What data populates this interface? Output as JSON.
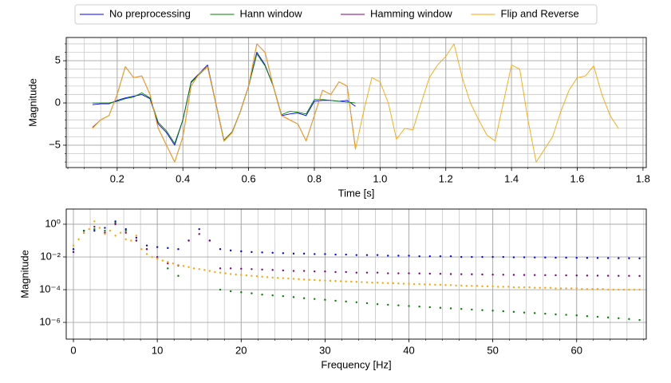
{
  "chart_data": [
    {
      "type": "line",
      "xlabel": "Time [s]",
      "ylabel": "Magnitude",
      "legend": "top",
      "grid": true,
      "minor_grid": true,
      "xlim": [
        0.045,
        1.81
      ],
      "ylim": [
        -7.65,
        7.75
      ],
      "xticks": [
        0.2,
        0.4,
        0.6,
        0.8,
        {
          "value": 1.0,
          "label": "1.0"
        },
        1.2,
        1.4,
        1.6,
        1.8
      ],
      "yticks": [
        {
          "value": -5,
          "label": "−5"
        },
        0,
        5
      ],
      "x": [
        0.125,
        0.15,
        0.175,
        0.2,
        0.225,
        0.25,
        0.275,
        0.3,
        0.325,
        0.35,
        0.375,
        0.4,
        0.425,
        0.45,
        0.475,
        0.5,
        0.525,
        0.55,
        0.575,
        0.6,
        0.625,
        0.65,
        0.675,
        0.7,
        0.725,
        0.75,
        0.775,
        0.8,
        0.825,
        0.85,
        0.875,
        0.9,
        0.925
      ],
      "series": [
        {
          "name": "No preprocessing",
          "color": "#0000ff",
          "values": [
            -0.2,
            -0.1,
            -0.1,
            0.3,
            0.6,
            0.8,
            1.0,
            0.5,
            -2.5,
            -3.5,
            -5,
            -2,
            2.5,
            3.5,
            4.5,
            0,
            -4.5,
            -3.5,
            -1,
            2,
            6,
            4.5,
            2,
            -1.5,
            -1.3,
            -1.2,
            -1.5,
            0.2,
            0.3,
            0.3,
            0.2,
            0.3,
            -0.4
          ]
        },
        {
          "name": "Hann window",
          "color": "#008000",
          "values": [
            0,
            0,
            0,
            0.2,
            0.5,
            0.7,
            1.2,
            0.6,
            -2.3,
            -3.3,
            -4.8,
            -2,
            2.4,
            3.4,
            4.3,
            0,
            -4.4,
            -3.4,
            -1,
            2,
            5.8,
            4.4,
            2,
            -1.4,
            -1,
            -1.1,
            -1.3,
            0.4,
            0.4,
            0.3,
            0.2,
            0.1,
            0
          ]
        },
        {
          "name": "Hamming window",
          "color": "#800080",
          "values": [
            -2.9,
            -2,
            -1.5,
            1,
            4.3,
            3,
            3.2,
            1,
            -3,
            -5,
            -7,
            -4,
            2,
            3.5,
            4.3,
            0,
            -4.5,
            -3.5,
            -1,
            2,
            7,
            6,
            2,
            -1.5,
            -2,
            -2.5,
            -4.5,
            -1.5,
            1.5,
            1,
            2.5,
            2,
            -5.4
          ]
        },
        {
          "name": "Flip and Reverse",
          "color": "#ffa500",
          "x": [
            0.125,
            0.15,
            0.175,
            0.2,
            0.225,
            0.25,
            0.275,
            0.3,
            0.325,
            0.35,
            0.375,
            0.4,
            0.425,
            0.45,
            0.475,
            0.5,
            0.525,
            0.55,
            0.575,
            0.6,
            0.625,
            0.65,
            0.675,
            0.7,
            0.725,
            0.75,
            0.775,
            0.8,
            0.825,
            0.85,
            0.875,
            0.9,
            0.925,
            0.95,
            0.975,
            1.0,
            1.025,
            1.05,
            1.075,
            1.1,
            1.125,
            1.15,
            1.175,
            1.2,
            1.225,
            1.25,
            1.275,
            1.3,
            1.325,
            1.35,
            1.375,
            1.4,
            1.425,
            1.45,
            1.475,
            1.5,
            1.525,
            1.55,
            1.575,
            1.6,
            1.625,
            1.65,
            1.675,
            1.7,
            1.725
          ],
          "values": [
            -3,
            -2,
            -1.5,
            1,
            4.3,
            3,
            3.2,
            1,
            -3,
            -5,
            -7,
            -4,
            2,
            3.5,
            4.3,
            0,
            -4.5,
            -3.5,
            -1,
            2,
            7,
            6,
            2,
            -1.5,
            -2,
            -2.5,
            -4.5,
            -1.5,
            1.5,
            1,
            2.5,
            2,
            -5.5,
            -1,
            3,
            2.5,
            0,
            -4.3,
            -3,
            -3.2,
            0,
            3,
            4.5,
            5.5,
            7,
            3,
            0,
            -2,
            -3.8,
            -4.5,
            0,
            4.5,
            4,
            -2,
            -7,
            -5.5,
            -4,
            -1,
            1.5,
            3,
            3.2,
            4.4,
            1,
            -1.5,
            -3
          ]
        }
      ]
    },
    {
      "type": "scatter",
      "xlabel": "Frequency [Hz]",
      "ylabel": "Magnitude",
      "yscale": "log",
      "grid": true,
      "minor_grid": true,
      "xlim": [
        -0.86,
        68.3
      ],
      "ylim": [
        9.5e-08,
        8.45
      ],
      "xticks": [
        0,
        10,
        20,
        30,
        40,
        50,
        60
      ],
      "yticks": [
        {
          "value": 1,
          "label": "10⁰"
        },
        {
          "value": 0.01,
          "label": "10⁻²"
        },
        {
          "value": 0.0001,
          "label": "10⁻⁴"
        },
        {
          "value": 1e-06,
          "label": "10⁻⁶"
        }
      ],
      "x": [
        0,
        1.25,
        2.5,
        3.75,
        5,
        6.25,
        7.5,
        8.75,
        10,
        11.25,
        12.5,
        13.75,
        15,
        16.25,
        17.5,
        18.75,
        20,
        21.25,
        22.5,
        23.75,
        25,
        26.25,
        27.5,
        28.75,
        30,
        31.25,
        32.5,
        33.75,
        35,
        36.25,
        37.5,
        38.75,
        40,
        41.25,
        42.5,
        43.75,
        45,
        46.25,
        47.5,
        48.75,
        50,
        51.25,
        52.5,
        53.75,
        55,
        56.25,
        57.5,
        58.75,
        60,
        61.25,
        62.5,
        63.75,
        65,
        66.25,
        67.5
      ],
      "series": [
        {
          "color": "#0000ff",
          "values": [
            0.03,
            0.4,
            0.4,
            0.6,
            1.5,
            0.5,
            0.15,
            0.05,
            0.04,
            0.035,
            0.03,
            0.1,
            0.5,
            0.1,
            0.03,
            0.025,
            0.022,
            0.02,
            0.019,
            0.018,
            0.017,
            0.016,
            0.016,
            0.015,
            0.015,
            0.014,
            0.014,
            0.013,
            0.013,
            0.013,
            0.012,
            0.012,
            0.012,
            0.011,
            0.011,
            0.011,
            0.011,
            0.01,
            0.01,
            0.01,
            0.01,
            0.01,
            0.0095,
            0.0095,
            0.0093,
            0.0092,
            0.009,
            0.009,
            0.0088,
            0.0087,
            0.0086,
            0.0085,
            0.0084,
            0.0083,
            0.0082
          ]
        },
        {
          "color": "#008000",
          "values": [
            0.02,
            0.4,
            0.5,
            0.4,
            1.2,
            0.4,
            0.1,
            0.03,
            0.008,
            0.002,
            0.0007,
            null,
            null,
            null,
            0.0001,
            8e-05,
            7e-05,
            6e-05,
            5e-05,
            4.5e-05,
            4e-05,
            3.5e-05,
            3e-05,
            2.7e-05,
            2.4e-05,
            2.1e-05,
            1.9e-05,
            1.7e-05,
            1.5e-05,
            1.3e-05,
            1.2e-05,
            1.1e-05,
            1e-05,
            9.3e-06,
            8.5e-06,
            7.8e-06,
            7.2e-06,
            6.6e-06,
            6.1e-06,
            5.6e-06,
            5.2e-06,
            4.8e-06,
            4.4e-06,
            4e-06,
            3.7e-06,
            3.4e-06,
            3.1e-06,
            2.9e-06,
            2.7e-06,
            2.4e-06,
            2.2e-06,
            2e-06,
            1.8e-06,
            1.6e-06,
            1.4e-06
          ]
        },
        {
          "color": "#800080",
          "values": [
            0.02,
            0.3,
            0.7,
            0.3,
            1.0,
            0.3,
            0.1,
            0.03,
            0.01,
            0.004,
            0.003,
            0.1,
            0.25,
            0.1,
            0.002,
            0.002,
            0.0019,
            0.0018,
            0.0017,
            0.0016,
            0.0015,
            0.0014,
            0.0014,
            0.0013,
            0.0013,
            0.0012,
            0.0012,
            0.0011,
            0.0011,
            0.0011,
            0.001,
            0.001,
            0.001,
            0.00098,
            0.00095,
            0.00093,
            0.0009,
            0.00088,
            0.00087,
            0.00085,
            0.00083,
            0.00082,
            0.0008,
            0.00079,
            0.00078,
            0.00077,
            0.00076,
            0.00075,
            0.00074,
            0.00073,
            0.00072,
            0.00071,
            0.0007,
            0.0007,
            0.00069
          ]
        },
        {
          "color": "#ffa500",
          "x": [
            0,
            0.625,
            1.25,
            1.875,
            2.5,
            3.125,
            3.75,
            4.375,
            5,
            5.625,
            6.25,
            6.875,
            7.5,
            8.125,
            8.75,
            9.375,
            10,
            10.625,
            11.25,
            11.875,
            12.5,
            13.125,
            13.75,
            14.375,
            15,
            15.625,
            16.25,
            16.875,
            17.5,
            18.125,
            18.75,
            19.375,
            20,
            20.625,
            21.25,
            21.875,
            22.5,
            23.125,
            23.75,
            24.375,
            25,
            25.625,
            26.25,
            26.875,
            27.5,
            28.125,
            28.75,
            29.375,
            30,
            30.625,
            31.25,
            31.875,
            32.5,
            33.125,
            33.75,
            34.375,
            35,
            35.625,
            36.25,
            36.875,
            37.5,
            38.125,
            38.75,
            39.375,
            40,
            40.625,
            41.25,
            41.875,
            42.5,
            43.125,
            43.75,
            44.375,
            45,
            45.625,
            46.25,
            46.875,
            47.5,
            48.125,
            48.75,
            49.375,
            50,
            50.625,
            51.25,
            51.875,
            52.5,
            53.125,
            53.75,
            54.375,
            55,
            55.625,
            56.25,
            56.875,
            57.5,
            58.125,
            58.75,
            59.375,
            60,
            60.625,
            61.25,
            61.875,
            62.5,
            63.125,
            63.75,
            64.375,
            65,
            65.625,
            66.25,
            66.875,
            67.5
          ],
          "values": [
            0.05,
            0.12,
            0.3,
            0.5,
            1.5,
            0.6,
            0.25,
            0.4,
            0.2,
            0.3,
            0.12,
            0.1,
            0.2,
            0.03,
            0.015,
            0.01,
            0.008,
            0.006,
            0.005,
            0.004,
            0.0033,
            0.0028,
            0.0024,
            0.002,
            0.0018,
            0.0016,
            0.0014,
            0.0012,
            0.0011,
            0.001,
            0.0009,
            0.00085,
            0.0008,
            0.00075,
            0.0007,
            0.00066,
            0.00062,
            0.00058,
            0.00055,
            0.00052,
            0.0005,
            0.00048,
            0.00046,
            0.00044,
            0.00042,
            0.0004,
            0.00039,
            0.00037,
            0.00036,
            0.00035,
            0.00034,
            0.00033,
            0.00032,
            0.00031,
            0.0003,
            0.00029,
            0.00028,
            0.00027,
            0.00027,
            0.00026,
            0.00025,
            0.00025,
            0.00024,
            0.00023,
            0.00023,
            0.00022,
            0.00022,
            0.00021,
            0.00021,
            0.0002,
            0.0002,
            0.00019,
            0.00019,
            0.00018,
            0.00018,
            0.00017,
            0.00017,
            0.00017,
            0.00016,
            0.00016,
            0.00016,
            0.00015,
            0.00015,
            0.00015,
            0.00014,
            0.00014,
            0.00014,
            0.00014,
            0.00013,
            0.00013,
            0.00013,
            0.00013,
            0.00012,
            0.00012,
            0.00012,
            0.00012,
            0.00012,
            0.00011,
            0.00011,
            0.00011,
            0.00011,
            0.00011,
            0.0001,
            0.0001,
            0.0001,
            0.0001,
            0.0001,
            0.0001,
            0.0001
          ]
        }
      ]
    }
  ]
}
